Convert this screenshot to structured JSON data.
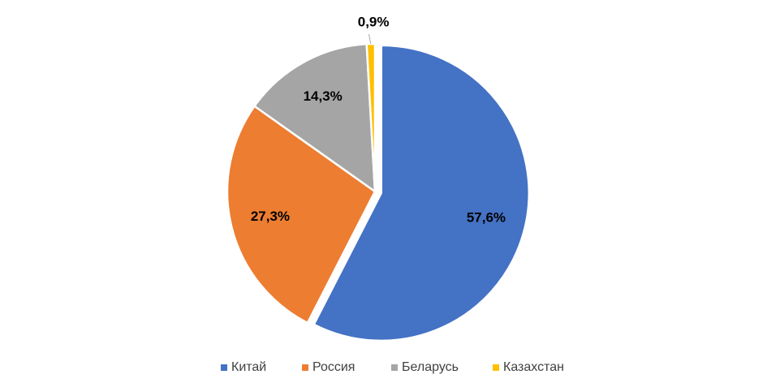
{
  "chart_data": {
    "type": "pie",
    "categories": [
      "Китай",
      "Россия",
      "Беларусь",
      "Казахстан"
    ],
    "values": [
      57.6,
      27.3,
      14.3,
      0.9
    ],
    "value_labels": [
      "57,6%",
      "27,3%",
      "14,3%",
      "0,9%"
    ],
    "colors": [
      "#4472c4",
      "#ed7d31",
      "#a5a5a5",
      "#ffc000"
    ],
    "legend": "bottom"
  }
}
